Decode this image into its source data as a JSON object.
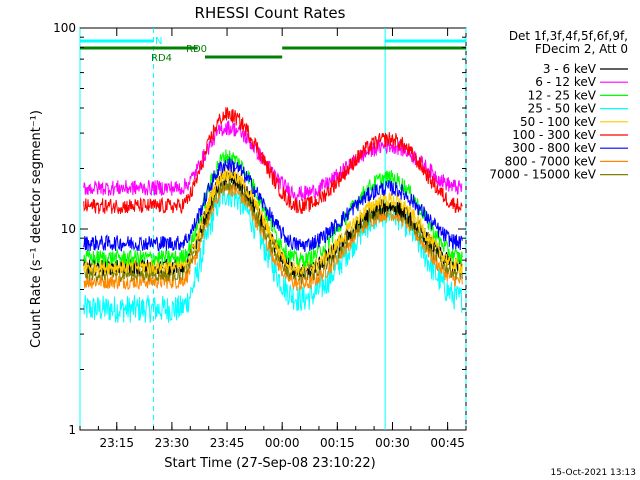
{
  "chart_data": {
    "type": "line",
    "title": "RHESSI Count Rates",
    "xlabel": "Start Time (27-Sep-08 23:10:22)",
    "ylabel": "Count Rate (s⁻¹ detector segment⁻¹)",
    "yscale": "log",
    "ylim": [
      1,
      100
    ],
    "xlim_minutes_after_2310": [
      -5,
      100
    ],
    "y_ticks": [
      {
        "value": 1,
        "label": "1"
      },
      {
        "value": 10,
        "label": "10"
      },
      {
        "value": 100,
        "label": "100"
      }
    ],
    "x_ticks": [
      {
        "minute": 5,
        "label": "23:15"
      },
      {
        "minute": 20,
        "label": "23:30"
      },
      {
        "minute": 35,
        "label": "23:45"
      },
      {
        "minute": 50,
        "label": "00:00"
      },
      {
        "minute": 65,
        "label": "00:15"
      },
      {
        "minute": 80,
        "label": "00:30"
      },
      {
        "minute": 95,
        "label": "00:45"
      }
    ],
    "legend_header": [
      "Det 1f,3f,4f,5f,6f,9f,",
      "FDecim 2, Att 0"
    ],
    "legend_placement": "right",
    "grid": false,
    "noisy": true,
    "series": [
      {
        "name": "3 - 6 keV",
        "color": "#000000",
        "values": [
          6.5,
          6.5,
          6.5,
          6.5,
          18,
          6.2,
          13,
          6.5
        ]
      },
      {
        "name": "6 - 12 keV",
        "color": "#ff00ff",
        "values": [
          16,
          16,
          16,
          16,
          32,
          15,
          26,
          16
        ]
      },
      {
        "name": "12 - 25 keV",
        "color": "#00ff00",
        "values": [
          7.2,
          7.2,
          7.2,
          7.2,
          23,
          7,
          18,
          7.2
        ]
      },
      {
        "name": "25 - 50 keV",
        "color": "#00ffff",
        "values": [
          4,
          4,
          4,
          4,
          15,
          4.5,
          12,
          4.5
        ]
      },
      {
        "name": "50 - 100 keV",
        "color": "#ffcc00",
        "values": [
          6.5,
          6.5,
          6.5,
          6.5,
          19,
          6.3,
          14,
          6.5
        ]
      },
      {
        "name": "100 - 300 keV",
        "color": "#ff0000",
        "values": [
          13,
          13,
          13,
          13,
          37,
          13,
          28,
          13
        ]
      },
      {
        "name": "300 - 800 keV",
        "color": "#0000ff",
        "values": [
          8.5,
          8.5,
          8.5,
          8.5,
          21,
          8.3,
          16,
          8.5
        ]
      },
      {
        "name": "800 - 7000 keV",
        "color": "#ff8800",
        "values": [
          5.5,
          5.5,
          5.5,
          5.5,
          16,
          5.3,
          12,
          5.5
        ]
      },
      {
        "name": "7000 - 15000 keV",
        "color": "#808000",
        "values": [
          6,
          6,
          6,
          6,
          17,
          5.8,
          12.5,
          6
        ]
      }
    ],
    "x_minutes_after_2310": [
      -4,
      10,
      16,
      22,
      35,
      55,
      79,
      99
    ],
    "annotations": {
      "night_label": "N",
      "rd0_label": "RD0",
      "rd4_label": "RD4",
      "night_intervals_min": [
        [
          -5,
          15
        ],
        [
          78,
          100
        ]
      ],
      "night_boundaries_min": [
        -5,
        15,
        78,
        100
      ],
      "rd0_intervals_min": [
        [
          -5,
          27
        ],
        [
          50,
          100
        ]
      ],
      "rd4_intervals_min": [
        [
          29,
          50
        ]
      ],
      "night_color": "#00ffff",
      "decimation_color": "#008000"
    }
  },
  "footer": {
    "timestamp": "15-Oct-2021 13:13"
  }
}
